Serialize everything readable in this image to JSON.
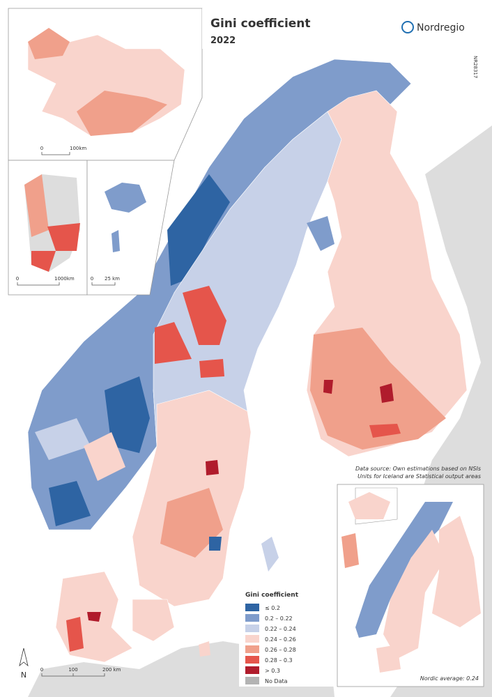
{
  "header": {
    "title": "Gini coefficient",
    "year": "2022",
    "logo": "Nordregio",
    "code": "NR28317"
  },
  "source": [
    "Data source: Own estimations based on NSIs",
    "Units for Iceland are Statistical output areas"
  ],
  "legend": {
    "title": "Gini coefficient",
    "items": [
      {
        "label": "≤ 0.2",
        "color": "#2e64a3"
      },
      {
        "label": "0.2 – 0.22",
        "color": "#7f9ccb"
      },
      {
        "label": "0.22 – 0.24",
        "color": "#c7d1e8"
      },
      {
        "label": "0.24 – 0.26",
        "color": "#f9d4cc"
      },
      {
        "label": "0.26 – 0.28",
        "color": "#f0a08b"
      },
      {
        "label": "0.28 – 0.3",
        "color": "#e5554b"
      },
      {
        "label": "> 0.3",
        "color": "#b01c2c"
      },
      {
        "label": "No Data",
        "color": "#b3b3b3"
      }
    ]
  },
  "scale_bars": {
    "iceland": [
      "0",
      "100km"
    ],
    "greenland": [
      "0",
      "1000km"
    ],
    "faroe": [
      "0",
      "25 km"
    ],
    "main": [
      "0",
      "100",
      "200 km"
    ]
  },
  "north": "N",
  "inset_note": "Nordic average: 0.24"
}
